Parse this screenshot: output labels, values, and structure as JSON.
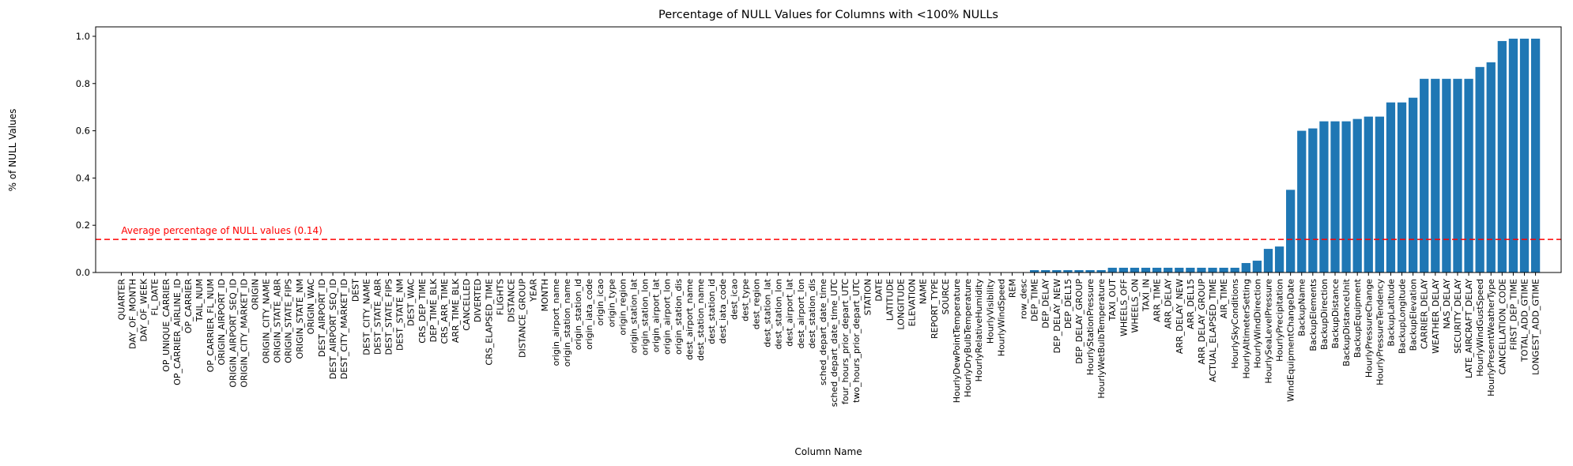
{
  "chart_data": {
    "type": "bar",
    "title": "Percentage of NULL Values for Columns with <100% NULLs",
    "x_label": "Column Name",
    "y_label": "% of NULL Values",
    "color": "#1f77b4",
    "categories": [
      "QUARTER",
      "DAY_OF_MONTH",
      "DAY_OF_WEEK",
      "FL_DATE",
      "OP_UNIQUE_CARRIER",
      "OP_CARRIER_AIRLINE_ID",
      "OP_CARRIER",
      "TAIL_NUM",
      "OP_CARRIER_FL_NUM",
      "ORIGIN_AIRPORT_ID",
      "ORIGIN_AIRPORT_SEQ_ID",
      "ORIGIN_CITY_MARKET_ID",
      "ORIGIN",
      "ORIGIN_CITY_NAME",
      "ORIGIN_STATE_ABR",
      "ORIGIN_STATE_FIPS",
      "ORIGIN_STATE_NM",
      "ORIGIN_WAC",
      "DEST_AIRPORT_ID",
      "DEST_AIRPORT_SEQ_ID",
      "DEST_CITY_MARKET_ID",
      "DEST",
      "DEST_CITY_NAME",
      "DEST_STATE_ABR",
      "DEST_STATE_FIPS",
      "DEST_STATE_NM",
      "DEST_WAC",
      "CRS_DEP_TIME",
      "DEP_TIME_BLK",
      "CRS_ARR_TIME",
      "ARR_TIME_BLK",
      "CANCELLED",
      "DIVERTED",
      "CRS_ELAPSED_TIME",
      "FLIGHTS",
      "DISTANCE",
      "DISTANCE_GROUP",
      "YEAR",
      "MONTH",
      "origin_airport_name",
      "origin_station_name",
      "origin_station_id",
      "origin_iata_code",
      "origin_icao",
      "origin_type",
      "origin_region",
      "origin_station_lat",
      "origin_station_lon",
      "origin_airport_lat",
      "origin_airport_lon",
      "origin_station_dis",
      "dest_airport_name",
      "dest_station_name",
      "dest_station_id",
      "dest_iata_code",
      "dest_icao",
      "dest_type",
      "dest_region",
      "dest_station_lat",
      "dest_station_lon",
      "dest_airport_lat",
      "dest_airport_lon",
      "dest_station_dis",
      "sched_depart_date_time",
      "sched_depart_date_time_UTC",
      "four_hours_prior_depart_UTC",
      "two_hours_prior_depart_UTC",
      "STATION",
      "DATE",
      "LATITUDE",
      "LONGITUDE",
      "ELEVATION",
      "NAME",
      "REPORT_TYPE",
      "SOURCE",
      "HourlyDewPointTemperature",
      "HourlyDryBulbTemperature",
      "HourlyRelativeHumidity",
      "HourlyVisibility",
      "HourlyWindSpeed",
      "REM",
      "row_desc",
      "DEP_TIME",
      "DEP_DELAY",
      "DEP_DELAY_NEW",
      "DEP_DEL15",
      "DEP_DELAY_GROUP",
      "HourlyStationPressure",
      "HourlyWetBulbTemperature",
      "TAXI_OUT",
      "WHEELS_OFF",
      "WHEELS_ON",
      "TAXI_IN",
      "ARR_TIME",
      "ARR_DELAY",
      "ARR_DELAY_NEW",
      "ARR_DEL15",
      "ARR_DELAY_GROUP",
      "ACTUAL_ELAPSED_TIME",
      "AIR_TIME",
      "HourlySkyConditions",
      "HourlyAltimeterSetting",
      "HourlyWindDirection",
      "HourlySeaLevelPressure",
      "HourlyPrecipitation",
      "WindEquipmentChangeDate",
      "BackupName",
      "BackupElements",
      "BackupDirection",
      "BackupDistance",
      "BackupDistanceUnit",
      "BackupEquipment",
      "HourlyPressureChange",
      "HourlyPressureTendency",
      "BackupLatitude",
      "BackupLongitude",
      "BackupElevation",
      "CARRIER_DELAY",
      "WEATHER_DELAY",
      "NAS_DELAY",
      "SECURITY_DELAY",
      "LATE_AIRCRAFT_DELAY",
      "HourlyWindGustSpeed",
      "HourlyPresentWeatherType",
      "CANCELLATION_CODE",
      "FIRST_DEP_TIME",
      "TOTAL_ADD_GTIME",
      "LONGEST_ADD_GTIME"
    ],
    "values": [
      0,
      0,
      0,
      0,
      0,
      0,
      0,
      0,
      0,
      0,
      0,
      0,
      0,
      0,
      0,
      0,
      0,
      0,
      0,
      0,
      0,
      0,
      0,
      0,
      0,
      0,
      0,
      0,
      0,
      0,
      0,
      0,
      0,
      0,
      0,
      0,
      0,
      0,
      0,
      0,
      0,
      0,
      0,
      0,
      0,
      0,
      0,
      0,
      0,
      0,
      0,
      0,
      0,
      0,
      0,
      0,
      0,
      0,
      0,
      0,
      0,
      0,
      0,
      0,
      0,
      0,
      0,
      0,
      0,
      0,
      0,
      0,
      0,
      0,
      0,
      0,
      0,
      0,
      0,
      0,
      0,
      0,
      0.01,
      0.01,
      0.01,
      0.01,
      0.01,
      0.01,
      0.01,
      0.02,
      0.02,
      0.02,
      0.02,
      0.02,
      0.02,
      0.02,
      0.02,
      0.02,
      0.02,
      0.02,
      0.02,
      0.04,
      0.05,
      0.1,
      0.11,
      0.35,
      0.6,
      0.61,
      0.64,
      0.64,
      0.64,
      0.65,
      0.66,
      0.66,
      0.72,
      0.72,
      0.74,
      0.82,
      0.82,
      0.82,
      0.82,
      0.82,
      0.87,
      0.89,
      0.98,
      0.99,
      0.99,
      0.99
    ],
    "ylim": [
      0,
      1.04
    ],
    "yticks": [
      {
        "value": 0,
        "label": "0.0"
      },
      0.2,
      0.4,
      0.6,
      0.8,
      {
        "value": 1,
        "label": "1.0"
      }
    ],
    "hline": {
      "value": 0.14,
      "color": "red",
      "label": "Average percentage of NULL values (0.14)"
    }
  }
}
